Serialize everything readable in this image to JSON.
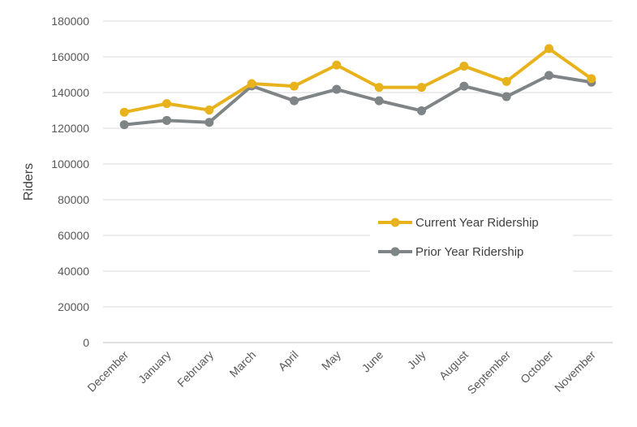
{
  "chart_data": {
    "type": "line",
    "title": "",
    "xlabel": "",
    "ylabel": "Riders",
    "ylim": [
      0,
      180000
    ],
    "yticks": [
      "0",
      "20000",
      "40000",
      "60000",
      "80000",
      "100000",
      "120000",
      "140000",
      "160000",
      "180000"
    ],
    "grid": true,
    "legend_position": "center-right",
    "categories": [
      "December",
      "January",
      "February",
      "March",
      "April",
      "May",
      "June",
      "July",
      "August",
      "September",
      "October",
      "November"
    ],
    "series": [
      {
        "name": "Current Year Ridership",
        "color": "#e8b21c",
        "values": [
          129000,
          133800,
          130200,
          145000,
          143600,
          155400,
          142900,
          142900,
          154800,
          146200,
          164600,
          147800
        ]
      },
      {
        "name": "Prior Year Ridership",
        "color": "#7f8487",
        "values": [
          122000,
          124400,
          123300,
          143700,
          135400,
          141800,
          135400,
          129800,
          143600,
          137700,
          149600,
          145800
        ]
      }
    ]
  }
}
